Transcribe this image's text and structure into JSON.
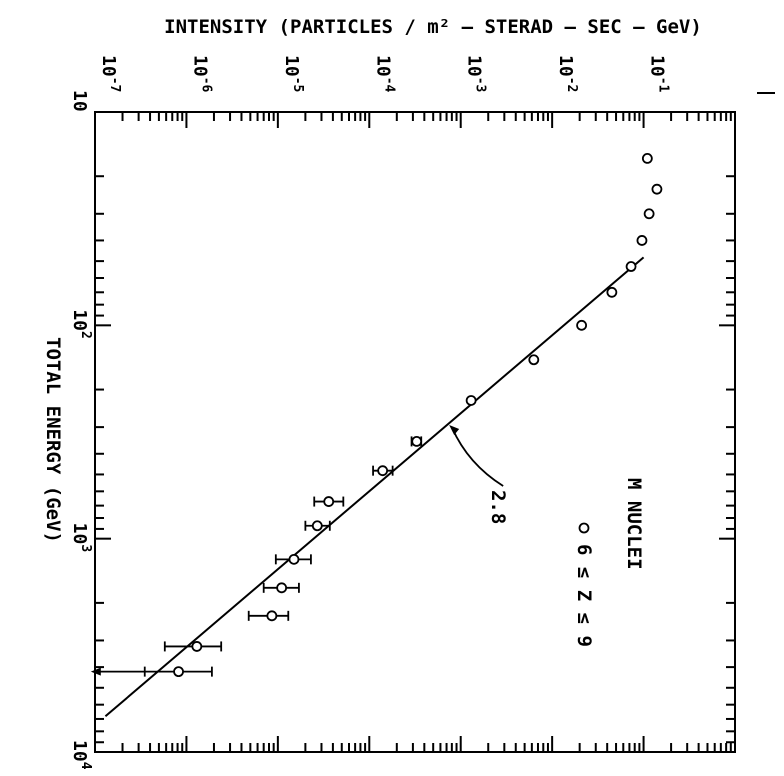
{
  "chart_data": {
    "type": "scatter",
    "title": "",
    "intensity_axis": {
      "label": "INTENSITY (PARTICLES / m² – STERAD – SEC – GeV)",
      "scale": "log",
      "range": [
        1e-07,
        1
      ],
      "ticks": [
        {
          "v": 1e-07,
          "base": "10",
          "exp": "-7"
        },
        {
          "v": 1e-06,
          "base": "10",
          "exp": "-6"
        },
        {
          "v": 1e-05,
          "base": "10",
          "exp": "-5"
        },
        {
          "v": 0.0001,
          "base": "10",
          "exp": "-4"
        },
        {
          "v": 0.001,
          "base": "10",
          "exp": "-3"
        },
        {
          "v": 0.01,
          "base": "10",
          "exp": "-2"
        },
        {
          "v": 0.1,
          "base": "10",
          "exp": "-1"
        }
      ]
    },
    "energy_axis": {
      "label": "TOTAL ENERGY (GeV)",
      "scale": "log",
      "range": [
        10,
        10000
      ],
      "ticks": [
        {
          "v": 10,
          "base": "10",
          "exp": ""
        },
        {
          "v": 100,
          "base": "10",
          "exp": "2"
        },
        {
          "v": 1000,
          "base": "10",
          "exp": "3"
        },
        {
          "v": 10000,
          "base": "10",
          "exp": "4"
        }
      ]
    },
    "legend": {
      "title": "M NUCLEI",
      "entry": "6 ≤ Z ≤ 9",
      "placement": "right"
    },
    "fit_line": {
      "label": "2.8",
      "points": [
        [
          0.1,
          48
        ],
        [
          1.3e-07,
          6800
        ]
      ]
    },
    "series": [
      {
        "marker": "open-circle",
        "points": [
          {
            "energy": 16.5,
            "intensity": 0.11
          },
          {
            "energy": 23,
            "intensity": 0.14
          },
          {
            "energy": 30,
            "intensity": 0.115
          },
          {
            "energy": 40,
            "intensity": 0.096
          },
          {
            "energy": 53,
            "intensity": 0.073
          },
          {
            "energy": 70,
            "intensity": 0.045
          },
          {
            "energy": 100,
            "intensity": 0.021
          },
          {
            "energy": 145,
            "intensity": 0.0063
          },
          {
            "energy": 225,
            "intensity": 0.0013
          },
          {
            "energy": 350,
            "intensity": 0.00033,
            "err": [
              0.00029,
              0.00037
            ]
          },
          {
            "energy": 480,
            "intensity": 0.00014,
            "err": [
              0.00011,
              0.00018
            ]
          },
          {
            "energy": 670,
            "intensity": 3.6e-05,
            "err": [
              2.5e-05,
              5.2e-05
            ]
          },
          {
            "energy": 870,
            "intensity": 2.7e-05,
            "err": [
              2e-05,
              3.7e-05
            ]
          },
          {
            "energy": 1250,
            "intensity": 1.5e-05,
            "err": [
              9.5e-06,
              2.3e-05
            ]
          },
          {
            "energy": 1700,
            "intensity": 1.1e-05,
            "err": [
              7e-06,
              1.7e-05
            ]
          },
          {
            "energy": 2300,
            "intensity": 8.6e-06,
            "err": [
              4.8e-06,
              1.3e-05
            ]
          },
          {
            "energy": 3200,
            "intensity": 1.3e-06,
            "err": [
              5.8e-07,
              2.4e-06
            ]
          },
          {
            "energy": 4200,
            "intensity": 8.2e-07,
            "err": [
              3.5e-07,
              1.9e-06
            ]
          }
        ]
      }
    ],
    "annotations": [
      {
        "type": "upper-limit-arrow",
        "from_intensity": 3.5e-07,
        "to_intensity": 9e-08,
        "energy": 4200
      }
    ]
  }
}
